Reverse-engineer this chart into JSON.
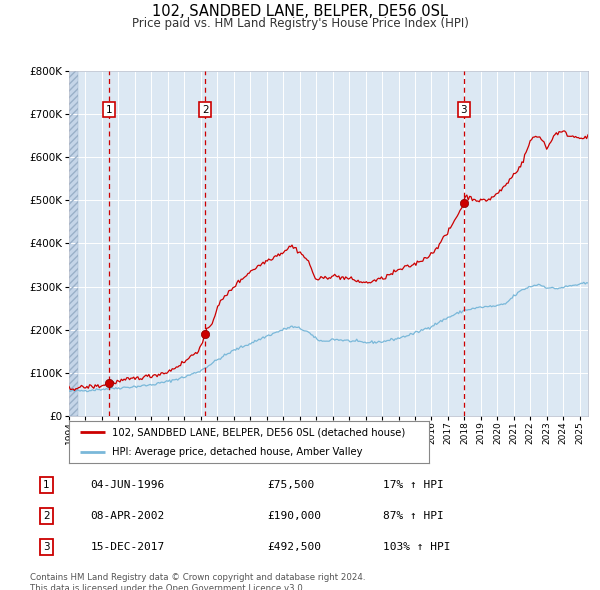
{
  "title": "102, SANDBED LANE, BELPER, DE56 0SL",
  "subtitle": "Price paid vs. HM Land Registry's House Price Index (HPI)",
  "legend_line1": "102, SANDBED LANE, BELPER, DE56 0SL (detached house)",
  "legend_line2": "HPI: Average price, detached house, Amber Valley",
  "purchases": [
    {
      "num": 1,
      "date": "04-JUN-1996",
      "date_x": 1996.42,
      "price": 75500,
      "hpi_pct": "17% ↑ HPI"
    },
    {
      "num": 2,
      "date": "08-APR-2002",
      "date_x": 2002.27,
      "price": 190000,
      "hpi_pct": "87% ↑ HPI"
    },
    {
      "num": 3,
      "date": "15-DEC-2017",
      "date_x": 2017.96,
      "price": 492500,
      "hpi_pct": "103% ↑ HPI"
    }
  ],
  "hpi_color": "#7ab8d9",
  "price_color": "#cc0000",
  "dot_color": "#cc0000",
  "dashed_color": "#cc0000",
  "plot_bg": "#dce8f3",
  "grid_color": "#ffffff",
  "ylim": [
    0,
    800000
  ],
  "xlim_start": 1994.0,
  "xlim_end": 2025.5,
  "footer": "Contains HM Land Registry data © Crown copyright and database right 2024.\nThis data is licensed under the Open Government Licence v3.0."
}
